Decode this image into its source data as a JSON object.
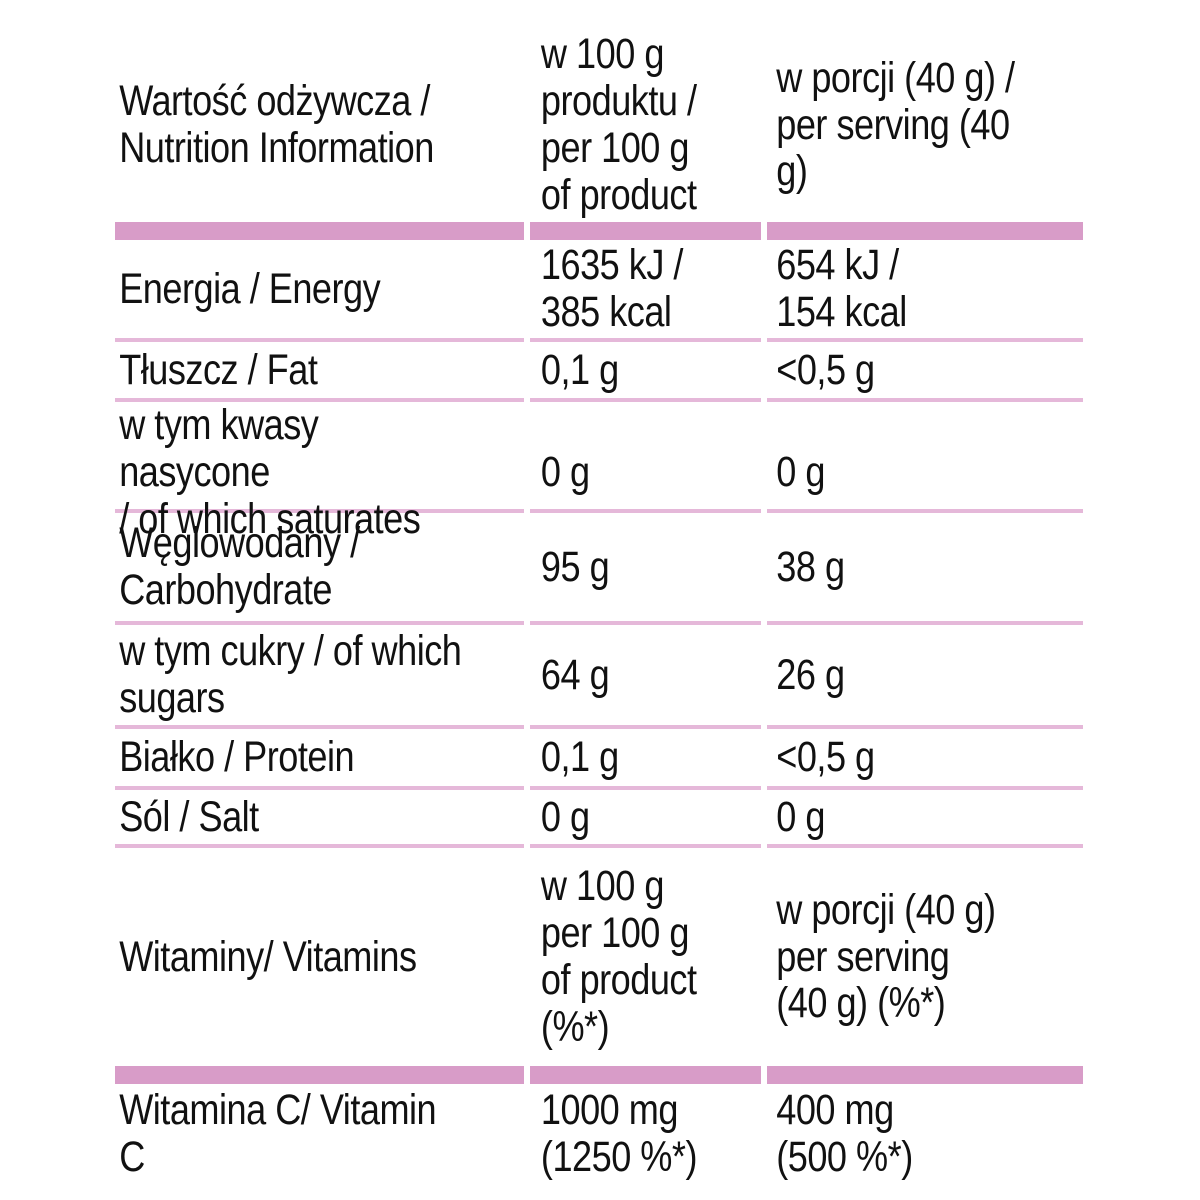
{
  "colors": {
    "accent_bar": "#D89CC8",
    "separator": "#E5B8D9",
    "text": "#111111",
    "background": "#FFFFFF"
  },
  "table": {
    "header": {
      "col1": "Wartość odżywcza /\nNutrition Information",
      "col2": "w 100 g\nproduktu /\nper 100 g\nof product",
      "col3": "w porcji (40 g) /\nper serving (40 g)"
    },
    "rows": [
      {
        "label": "Energia / Energy",
        "per100": "1635 kJ /\n385 kcal",
        "serving": "654 kJ /\n154 kcal"
      },
      {
        "label": "Tłuszcz / Fat",
        "per100": "0,1 g",
        "serving": "<0,5 g"
      },
      {
        "label": "w tym kwasy nasycone\n/ of which saturates",
        "per100": "0 g",
        "serving": "0 g"
      },
      {
        "label": "Węglowodany /\nCarbohydrate",
        "per100": "95 g",
        "serving": "38 g"
      },
      {
        "label": "w tym cukry / of which\nsugars",
        "per100": "64 g",
        "serving": "26 g"
      },
      {
        "label": "Białko / Protein",
        "per100": "0,1 g",
        "serving": "<0,5 g"
      },
      {
        "label": "Sól / Salt",
        "per100": "0 g",
        "serving": "0 g"
      },
      {
        "label": "Witaminy/ Vitamins",
        "per100": "w 100 g\nper 100 g\nof product\n(%*)",
        "serving": "w porcji (40 g)\nper serving\n(40 g) (%*)"
      }
    ],
    "vitamin_row": {
      "label": "Witamina C/ Vitamin C",
      "per100": "1000 mg\n(1250 %*)",
      "serving": "400 mg\n(500 %*)"
    }
  }
}
